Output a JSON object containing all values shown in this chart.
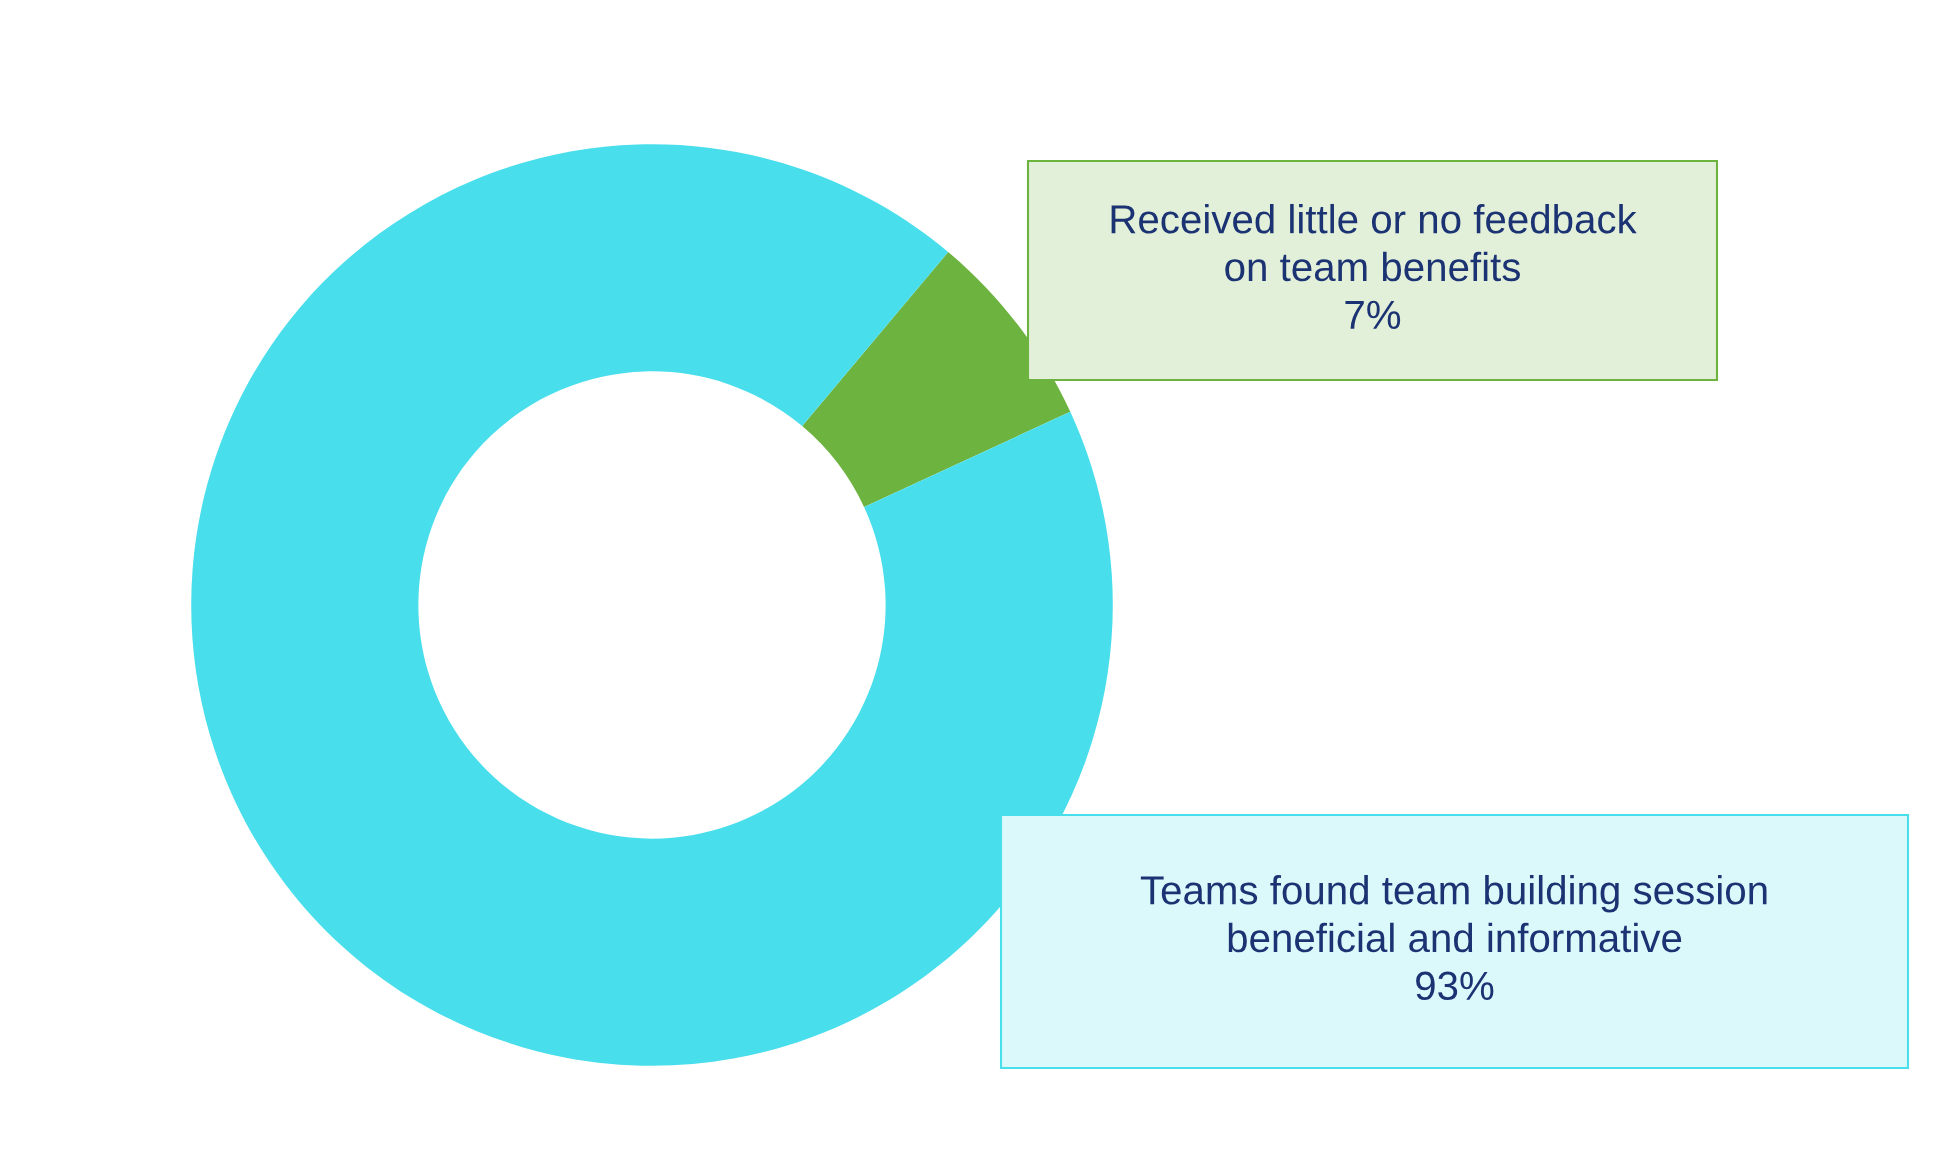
{
  "chart_data": {
    "type": "donut",
    "categories": [
      "Received little or no feedback\non team benefits",
      "Teams found team building session\nbeneficial and informative"
    ],
    "values": [
      7,
      93
    ],
    "value_labels": [
      "7%",
      "93%"
    ],
    "colors": [
      "#6db33f",
      "#49deec"
    ],
    "legend": false
  }
}
